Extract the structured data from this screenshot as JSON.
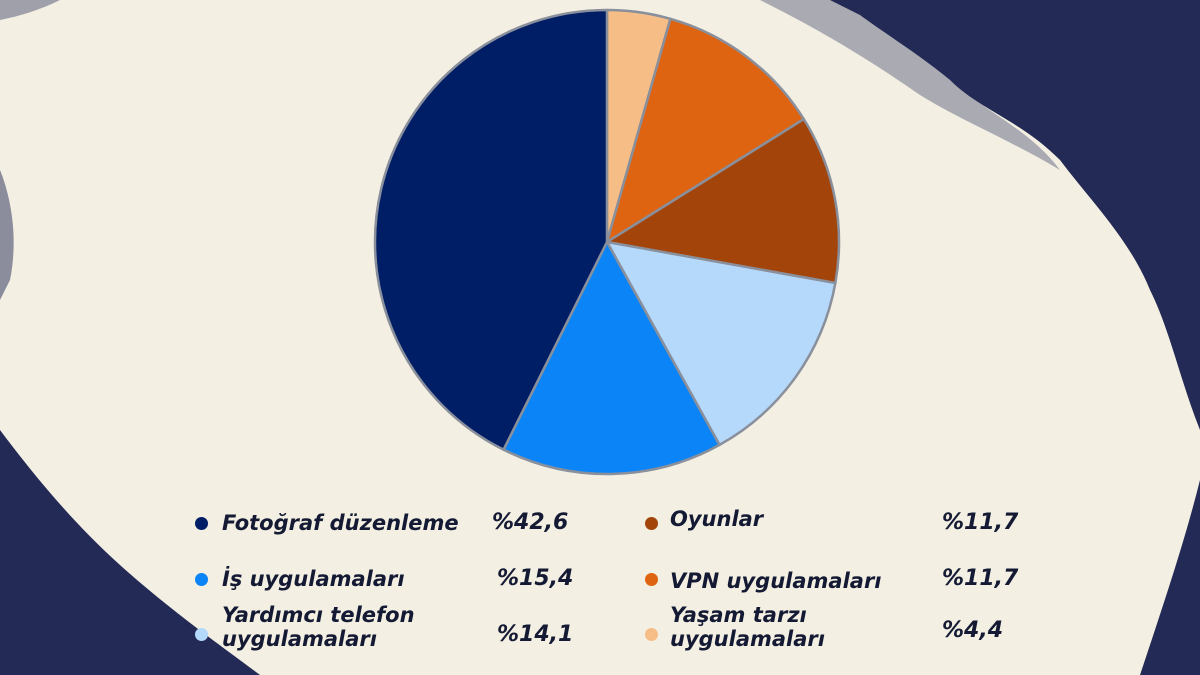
{
  "chart_data": {
    "type": "pie",
    "slices": [
      {
        "label": "Yaşam tarzı uygulamaları",
        "value": 4.4,
        "value_text": "%4,4",
        "color": "#f7bd86"
      },
      {
        "label": "VPN uygulamaları",
        "value": 11.7,
        "value_text": "%11,7",
        "color": "#de6412"
      },
      {
        "label": "Oyunlar",
        "value": 11.7,
        "value_text": "%11,7",
        "color": "#a3440b"
      },
      {
        "label": "Yardımcı telefon uygulamaları",
        "value": 14.1,
        "value_text": "%14,1",
        "color": "#b5d9fb"
      },
      {
        "label": "İş uygulamaları",
        "value": 15.4,
        "value_text": "%15,4",
        "color": "#0a84f6"
      },
      {
        "label": "Fotoğraf düzenleme",
        "value": 42.6,
        "value_text": "%42,6",
        "color": "#001e66"
      }
    ],
    "legend_placement": "bottom, two columns"
  },
  "colors": {
    "background": "#f3efe3",
    "backdrop_ink": "#232a55"
  }
}
